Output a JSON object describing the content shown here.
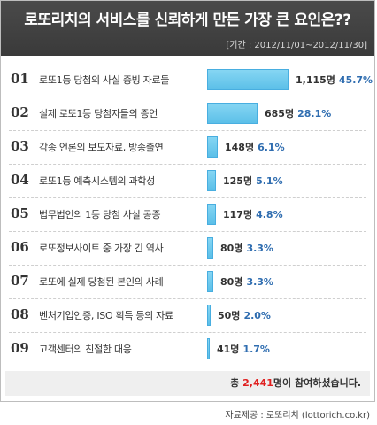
{
  "header": {
    "title": "로또리치의 서비스를 신뢰하게 만든 가장 큰 요인은??",
    "period": "[기간 : 2012/11/01~2012/11/30]"
  },
  "chart_data": {
    "type": "bar",
    "orientation": "horizontal",
    "categories": [
      "로또1등 당첨의 사실 증빙 자료들",
      "실제 로또1등 당첨자들의 증언",
      "각종 언론의 보도자료, 방송출연",
      "로또1등 예측시스템의 과학성",
      "법무법인의 1등 당첨 사실 공증",
      "로또정보사이트 중 가장 긴 역사",
      "로또에 실제 당첨된 본인의 사례",
      "벤처기업인증, ISO 획득 등의 자료",
      "고객센터의 친절한 대응"
    ],
    "ranks": [
      "01",
      "02",
      "03",
      "04",
      "05",
      "06",
      "07",
      "08",
      "09"
    ],
    "values": [
      1115,
      685,
      148,
      125,
      117,
      80,
      80,
      50,
      41
    ],
    "value_labels": [
      "1,115명",
      "685명",
      "148명",
      "125명",
      "117명",
      "80명",
      "80명",
      "50명",
      "41명"
    ],
    "percent_labels": [
      "45.7%",
      "28.1%",
      "6.1%",
      "5.1%",
      "4.8%",
      "3.3%",
      "3.3%",
      "2.0%",
      "1.7%"
    ],
    "bar_color": "#5bbfe8",
    "percent_color": "#2f6db0"
  },
  "footer": {
    "total_prefix": "총 ",
    "total_number": "2,441",
    "total_suffix": "명이 참여하셨습니다.",
    "source": "자료제공 : 로또리치 (lottorich.co.kr)"
  }
}
